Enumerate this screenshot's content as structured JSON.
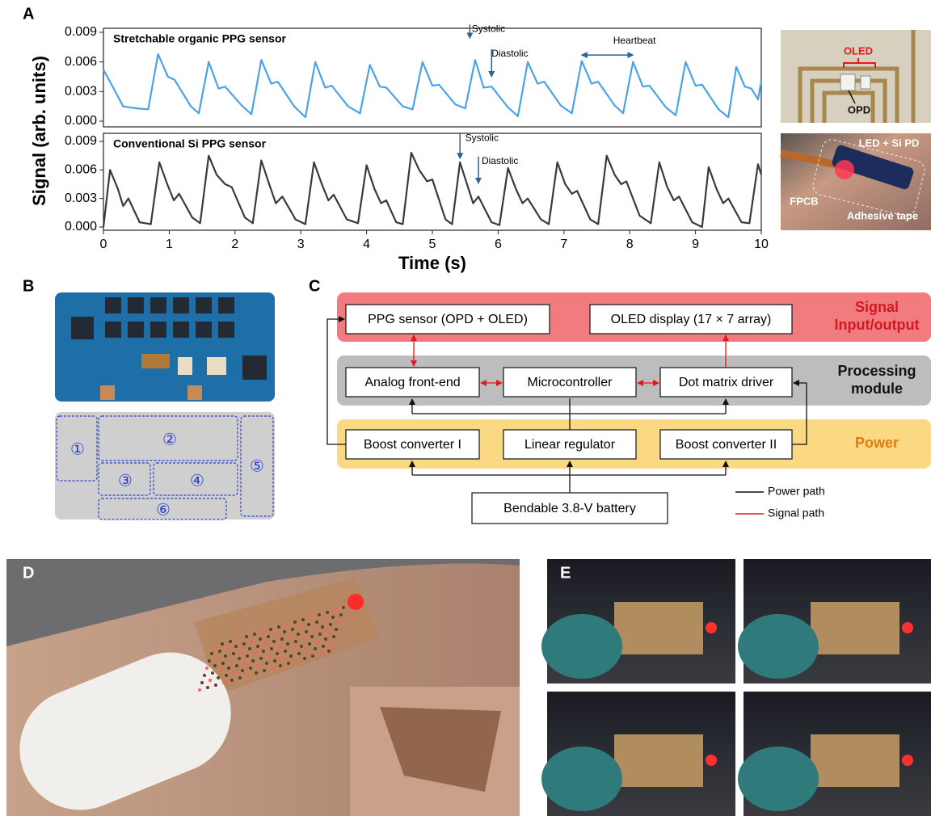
{
  "panel_labels": [
    "A",
    "B",
    "C",
    "D",
    "E"
  ],
  "chart_data": [
    {
      "type": "line",
      "title": "Stretchable organic PPG sensor",
      "ylabel": "Signal (arb. units)",
      "color": "#4aa3e8",
      "annotations": [
        "Systolic",
        "Diastolic",
        "Heartbeat"
      ],
      "x": [
        0,
        0.1,
        0.3,
        0.5,
        0.68,
        0.83,
        0.98,
        1.08,
        1.33,
        1.45,
        1.6,
        1.75,
        1.85,
        2.1,
        2.25,
        2.4,
        2.55,
        2.65,
        2.9,
        3.07,
        3.22,
        3.37,
        3.47,
        3.72,
        3.9,
        4.05,
        4.2,
        4.3,
        4.55,
        4.7,
        4.85,
        5.0,
        5.1,
        5.35,
        5.5,
        5.65,
        5.78,
        5.9,
        6.15,
        6.3,
        6.45,
        6.6,
        6.7,
        6.95,
        7.12,
        7.27,
        7.42,
        7.52,
        7.77,
        7.9,
        8.05,
        8.2,
        8.3,
        8.55,
        8.7,
        8.85,
        9.0,
        9.1,
        9.35,
        9.5,
        9.62,
        9.75,
        9.85,
        9.95,
        10
      ],
      "values": [
        0.0052,
        0.004,
        0.0015,
        0.0013,
        0.0012,
        0.0068,
        0.0045,
        0.0042,
        0.0015,
        0.0008,
        0.006,
        0.0033,
        0.0035,
        0.0016,
        0.0007,
        0.0062,
        0.0038,
        0.004,
        0.0015,
        0.0004,
        0.006,
        0.0034,
        0.0036,
        0.0015,
        0.0008,
        0.0057,
        0.0035,
        0.0034,
        0.0015,
        0.0012,
        0.006,
        0.0036,
        0.0037,
        0.0017,
        0.0013,
        0.0062,
        0.0034,
        0.0035,
        0.0014,
        0.0005,
        0.006,
        0.0038,
        0.004,
        0.0016,
        0.0008,
        0.0061,
        0.0038,
        0.004,
        0.0016,
        0.0008,
        0.006,
        0.0035,
        0.0036,
        0.0014,
        0.0006,
        0.006,
        0.0036,
        0.0037,
        0.0012,
        0.0004,
        0.0055,
        0.0035,
        0.0033,
        0.0022,
        0.0041
      ],
      "xlim": [
        0,
        10
      ],
      "ylim": [
        0,
        0.009
      ],
      "yticks": [
        {
          "value": 0,
          "label": "0.000"
        },
        {
          "value": 0.003,
          "label": "0.003"
        },
        {
          "value": 0.006,
          "label": "0.006"
        },
        {
          "value": 0.009,
          "label": "0.009"
        }
      ]
    },
    {
      "type": "line",
      "title": "Conventional Si PPG sensor",
      "xlabel": "Time (s)",
      "color": "#3a3a3a",
      "annotations": [
        "Systolic",
        "Diastolic"
      ],
      "x": [
        0,
        0.1,
        0.22,
        0.3,
        0.38,
        0.55,
        0.72,
        0.85,
        0.97,
        1.07,
        1.15,
        1.35,
        1.47,
        1.6,
        1.72,
        1.85,
        1.95,
        2.15,
        2.27,
        2.4,
        2.52,
        2.62,
        2.72,
        2.92,
        3.07,
        3.2,
        3.32,
        3.42,
        3.5,
        3.7,
        3.87,
        4.0,
        4.12,
        4.22,
        4.3,
        4.45,
        4.55,
        4.68,
        4.8,
        4.92,
        5.0,
        5.2,
        5.3,
        5.42,
        5.55,
        5.62,
        5.7,
        5.9,
        6.02,
        6.15,
        6.27,
        6.37,
        6.45,
        6.65,
        6.77,
        6.9,
        7.02,
        7.12,
        7.2,
        7.4,
        7.52,
        7.65,
        7.77,
        7.87,
        7.95,
        8.15,
        8.32,
        8.45,
        8.57,
        8.67,
        8.75,
        8.95,
        9.1,
        9.2,
        9.32,
        9.42,
        9.5,
        9.7,
        9.82,
        9.95,
        10
      ],
      "values": [
        0,
        0.006,
        0.004,
        0.0022,
        0.003,
        0.0005,
        0.0003,
        0.0068,
        0.0045,
        0.0028,
        0.0035,
        0.001,
        0.0004,
        0.0075,
        0.0055,
        0.0045,
        0.0042,
        0.001,
        0.0004,
        0.007,
        0.0045,
        0.0025,
        0.0032,
        0.0008,
        0.0003,
        0.0068,
        0.0045,
        0.0028,
        0.0034,
        0.0008,
        0.0004,
        0.0065,
        0.004,
        0.0025,
        0.0028,
        0.0005,
        0.0003,
        0.0078,
        0.006,
        0.0048,
        0.005,
        0.0008,
        0.0003,
        0.0068,
        0.004,
        0.0025,
        0.0032,
        0.0005,
        0.0002,
        0.0062,
        0.004,
        0.0025,
        0.003,
        0.0008,
        0.0003,
        0.0068,
        0.0045,
        0.0035,
        0.0038,
        0.0008,
        0.0003,
        0.0075,
        0.0055,
        0.0045,
        0.0048,
        0.0012,
        0.0004,
        0.0068,
        0.0042,
        0.0028,
        0.0032,
        0.0005,
        0,
        0.0063,
        0.004,
        0.0025,
        0.003,
        0.0005,
        0.0004,
        0.0066,
        0.0055
      ],
      "xlim": [
        0,
        10
      ],
      "ylim": [
        0,
        0.009
      ],
      "yticks": [
        {
          "value": 0,
          "label": "0.000"
        },
        {
          "value": 0.003,
          "label": "0.003"
        },
        {
          "value": 0.006,
          "label": "0.006"
        },
        {
          "value": 0.009,
          "label": "0.009"
        }
      ],
      "xticks": [
        0,
        1,
        2,
        3,
        4,
        5,
        6,
        7,
        8,
        9,
        10
      ]
    }
  ],
  "photo_labels": {
    "oled": "OLED",
    "opd": "OPD",
    "led_si_pd": "LED + Si PD",
    "fpcb": "FPCB",
    "adhesive_tape": "Adhesive tape"
  },
  "board_regions": [
    "①",
    "②",
    "③",
    "④",
    "⑤",
    "⑥"
  ],
  "diagram": {
    "groups": [
      "Signal Input/output",
      "Processing module",
      "Power"
    ],
    "nodes": [
      "PPG sensor (OPD + OLED)",
      "OLED display (17 × 7 array)",
      "Analog front-end",
      "Microcontroller",
      "Dot matrix driver",
      "Boost converter I",
      "Linear regulator",
      "Boost converter II",
      "Bendable 3.8-V battery"
    ],
    "legend": [
      "Power path",
      "Signal path"
    ]
  }
}
